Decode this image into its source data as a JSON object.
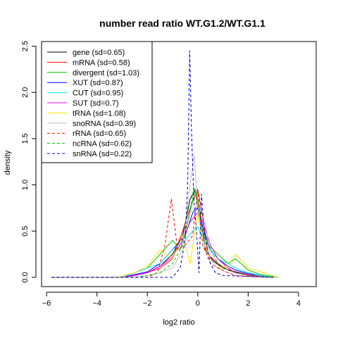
{
  "chart_data": {
    "type": "line",
    "title": "number read ratio WT.G1.2/WT.G1.1",
    "xlabel": "log2 ratio",
    "ylabel": "density",
    "xlim": [
      -6.2,
      4.7
    ],
    "ylim": [
      -0.1,
      2.55
    ],
    "xticks": [
      -6,
      -4,
      -2,
      0,
      2,
      4
    ],
    "yticks": [
      0.0,
      0.5,
      1.0,
      1.5,
      2.0,
      2.5
    ],
    "xtick_labels": [
      "−6",
      "−4",
      "−2",
      "0",
      "2",
      "4"
    ],
    "ytick_labels": [
      "0.0",
      "0.5",
      "1.0",
      "1.5",
      "2.0",
      "2.5"
    ],
    "grid": false,
    "legend_position": "top-left",
    "series": [
      {
        "name": "gene (sd=0.65)",
        "color": "#000000",
        "dash": "solid",
        "x": [
          -5.8,
          -3.0,
          -2.5,
          -2.0,
          -1.5,
          -1.0,
          -0.6,
          -0.3,
          -0.1,
          0.1,
          0.3,
          0.6,
          1.0,
          1.5,
          2.0,
          2.5,
          3.0
        ],
        "y": [
          0,
          0,
          0.02,
          0.05,
          0.12,
          0.25,
          0.45,
          0.85,
          0.95,
          0.7,
          0.3,
          0.18,
          0.1,
          0.06,
          0.03,
          0.01,
          0
        ]
      },
      {
        "name": "mRNA (sd=0.58)",
        "color": "#ff0000",
        "dash": "solid",
        "x": [
          -5.8,
          -3.0,
          -2.5,
          -2.0,
          -1.5,
          -1.0,
          -0.6,
          -0.3,
          0.0,
          0.2,
          0.4,
          0.8,
          1.2,
          1.5,
          2.0,
          2.5,
          3.0
        ],
        "y": [
          0,
          0,
          0.02,
          0.05,
          0.1,
          0.2,
          0.5,
          0.75,
          0.95,
          0.65,
          0.25,
          0.15,
          0.08,
          0.05,
          0.02,
          0.01,
          0
        ]
      },
      {
        "name": "divergent (sd=1.03)",
        "color": "#00c000",
        "dash": "solid",
        "x": [
          -5.8,
          -3.2,
          -2.5,
          -2.0,
          -1.5,
          -1.0,
          -0.7,
          -0.4,
          -0.1,
          0.1,
          0.4,
          0.8,
          1.2,
          1.5,
          2.0,
          2.5,
          3.2
        ],
        "y": [
          0,
          0,
          0.05,
          0.1,
          0.25,
          0.4,
          0.3,
          0.6,
          0.95,
          0.55,
          0.35,
          0.25,
          0.15,
          0.2,
          0.08,
          0.03,
          0
        ]
      },
      {
        "name": "XUT (sd=0.87)",
        "color": "#0000ff",
        "dash": "solid",
        "x": [
          -5.8,
          -3.0,
          -2.5,
          -2.0,
          -1.5,
          -1.0,
          -0.5,
          -0.2,
          0.0,
          0.2,
          0.5,
          0.8,
          1.2,
          1.5,
          2.0,
          2.5,
          3.0
        ],
        "y": [
          0,
          0,
          0.03,
          0.06,
          0.15,
          0.3,
          0.45,
          0.7,
          0.75,
          0.55,
          0.3,
          0.2,
          0.12,
          0.08,
          0.04,
          0.02,
          0
        ]
      },
      {
        "name": "CUT (sd=0.95)",
        "color": "#00e5ee",
        "dash": "solid",
        "x": [
          -5.8,
          -3.0,
          -2.5,
          -2.0,
          -1.5,
          -1.0,
          -0.5,
          -0.2,
          0.0,
          0.2,
          0.5,
          0.8,
          1.2,
          1.5,
          2.0,
          2.5,
          3.0
        ],
        "y": [
          0,
          0,
          0.05,
          0.1,
          0.15,
          0.3,
          0.4,
          0.5,
          0.55,
          0.4,
          0.3,
          0.2,
          0.15,
          0.1,
          0.05,
          0.02,
          0
        ]
      },
      {
        "name": "SUT (sd=0.7)",
        "color": "#ff00ff",
        "dash": "solid",
        "x": [
          -5.8,
          -3.0,
          -2.5,
          -2.0,
          -1.5,
          -1.0,
          -0.6,
          -0.3,
          0.0,
          0.2,
          0.5,
          0.8,
          1.2,
          1.5,
          2.0,
          2.5,
          3.0
        ],
        "y": [
          0,
          0,
          0.02,
          0.05,
          0.12,
          0.22,
          0.4,
          0.6,
          0.7,
          0.6,
          0.35,
          0.2,
          0.1,
          0.05,
          0.03,
          0.01,
          0
        ]
      },
      {
        "name": "tRNA (sd=1.08)",
        "color": "#ffdd00",
        "dash": "solid",
        "x": [
          -5.8,
          -3.2,
          -2.5,
          -2.0,
          -1.5,
          -1.0,
          -0.6,
          -0.3,
          0.0,
          0.2,
          0.5,
          0.8,
          1.2,
          1.5,
          2.0,
          2.5,
          3.2
        ],
        "y": [
          0,
          0,
          0.05,
          0.12,
          0.3,
          0.2,
          0.45,
          0.15,
          0.7,
          0.4,
          0.2,
          0.1,
          0.12,
          0.25,
          0.1,
          0.06,
          0
        ]
      },
      {
        "name": "snoRNA (sd=0.39)",
        "color": "#bebebe",
        "dash": "solid",
        "x": [
          -5.8,
          -2.5,
          -2.0,
          -1.5,
          -1.0,
          -0.6,
          -0.35,
          -0.15,
          0.0,
          0.15,
          0.3,
          0.5,
          0.8,
          1.2,
          1.5,
          2.0,
          3.0
        ],
        "y": [
          0,
          0,
          0.02,
          0.05,
          0.1,
          0.3,
          0.9,
          1.32,
          0.8,
          0.5,
          0.6,
          0.2,
          0.1,
          0.05,
          0.02,
          0.01,
          0
        ]
      },
      {
        "name": "rRNA (sd=0.65)",
        "color": "#ff0000",
        "dash": "dashed",
        "x": [
          -5.8,
          -2.0,
          -1.6,
          -1.3,
          -1.05,
          -0.8,
          -0.5,
          -0.2,
          0.0,
          0.2,
          0.5,
          0.8,
          1.2,
          1.5,
          2.0,
          3.0
        ],
        "y": [
          0,
          0,
          0.05,
          0.35,
          0.85,
          0.3,
          0.35,
          0.45,
          0.95,
          0.35,
          0.15,
          0.1,
          0.05,
          0.02,
          0.01,
          0
        ]
      },
      {
        "name": "ncRNA (sd=0.62)",
        "color": "#00c000",
        "dash": "dashed",
        "x": [
          -5.8,
          -2.5,
          -2.0,
          -1.5,
          -1.0,
          -0.6,
          -0.35,
          -0.15,
          0.0,
          0.2,
          0.5,
          0.8,
          1.2,
          1.5,
          2.0,
          3.0
        ],
        "y": [
          0,
          0,
          0.02,
          0.05,
          0.15,
          0.35,
          0.65,
          0.98,
          0.85,
          0.5,
          0.3,
          0.15,
          0.08,
          0.05,
          0.02,
          0
        ]
      },
      {
        "name": "snRNA (sd=0.22)",
        "color": "#0000cc",
        "dash": "dashed",
        "x": [
          -5.8,
          -1.0,
          -0.7,
          -0.5,
          -0.4,
          -0.32,
          -0.25,
          -0.15,
          -0.05,
          0.05,
          0.15,
          0.25,
          0.35,
          0.5,
          0.7,
          1.0,
          3.0
        ],
        "y": [
          0,
          0,
          0.1,
          0.4,
          1.0,
          2.45,
          1.6,
          0.8,
          0.5,
          0.05,
          0.9,
          0.5,
          0.35,
          0.15,
          0.05,
          0.02,
          0
        ]
      }
    ]
  }
}
